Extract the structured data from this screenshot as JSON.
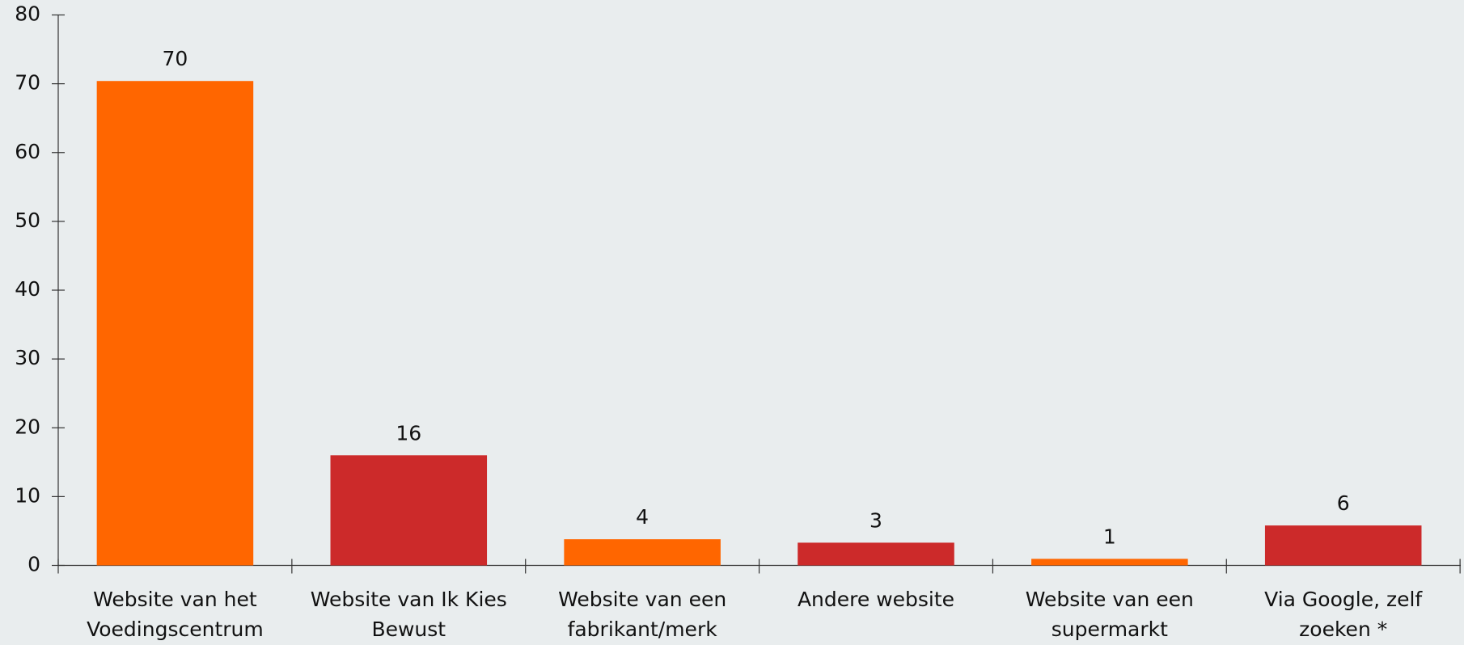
{
  "chart_data": {
    "type": "bar",
    "categories": [
      [
        "Website van het",
        "Voedingscentrum"
      ],
      [
        "Website van Ik Kies",
        "Bewust"
      ],
      [
        "Website van een",
        "fabrikant/merk"
      ],
      [
        "Andere website"
      ],
      [
        "Website van een",
        "supermarkt"
      ],
      [
        "Via Google, zelf",
        "zoeken *"
      ]
    ],
    "values": [
      70.4,
      16,
      3.8,
      3.3,
      0.95,
      5.8
    ],
    "value_labels": [
      "70",
      "16",
      "4",
      "3",
      "1",
      "6"
    ],
    "colors": [
      "#ff6600",
      "#cc2a2a",
      "#ff6600",
      "#cc2a2a",
      "#ff6600",
      "#cc2a2a"
    ],
    "ylim": [
      0,
      80
    ],
    "yticks": [
      0,
      10,
      20,
      30,
      40,
      50,
      60,
      70,
      80
    ],
    "grid": false
  }
}
